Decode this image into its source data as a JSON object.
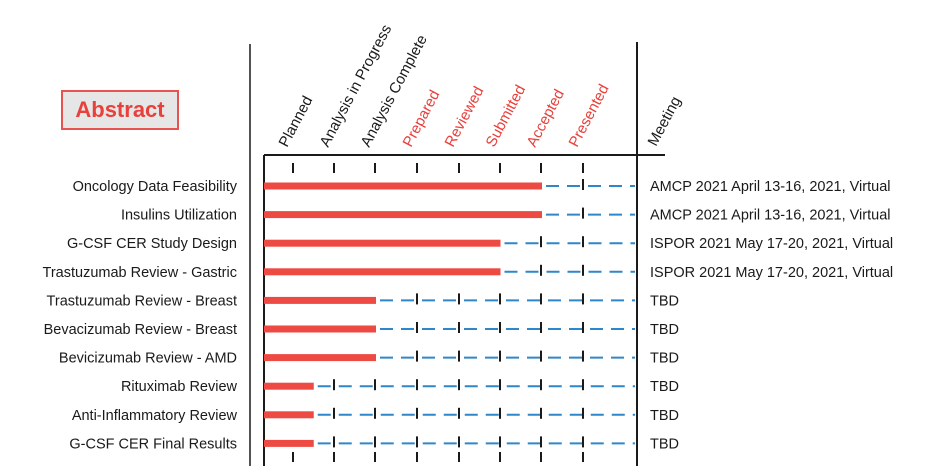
{
  "box_label": "Abstract",
  "chart_data": {
    "type": "bar",
    "stages": [
      "Planned",
      "Analysis in Progress",
      "Analysis Complete",
      "Prepared",
      "Reviewed",
      "Submitted",
      "Accepted",
      "Presented"
    ],
    "highlighted_stages": [
      "Prepared",
      "Reviewed",
      "Submitted",
      "Accepted",
      "Presented"
    ],
    "meeting_header": "Meeting",
    "categories": [
      "Oncology Data Feasibility",
      "Insulins Utilization",
      "G-CSF CER Study Design",
      "Trastuzumab Review - Gastric",
      "Trastuzumab Review - Breast",
      "Bevacizumab Review - Breast",
      "Bevicizumab Review - AMD",
      "Rituximab Review",
      "Anti-Inflammatory Review",
      "G-CSF CER Final Results"
    ],
    "completed_stage_index": [
      6,
      6,
      5,
      5,
      2,
      2,
      2,
      0.5,
      0.5,
      0.5
    ],
    "meetings": [
      "AMCP 2021 April 13-16, 2021, Virtual",
      "AMCP 2021 April 13-16, 2021, Virtual",
      "ISPOR 2021 May 17-20, 2021, Virtual",
      "ISPOR 2021 May 17-20, 2021, Virtual",
      "TBD",
      "TBD",
      "TBD",
      "TBD",
      "TBD",
      "TBD"
    ],
    "colors": {
      "progress": "#ee4a44",
      "remaining": "#2f86c9",
      "highlight_text": "#e8403b",
      "text": "#1a1a1a",
      "lines": "#1a1a1a"
    }
  }
}
